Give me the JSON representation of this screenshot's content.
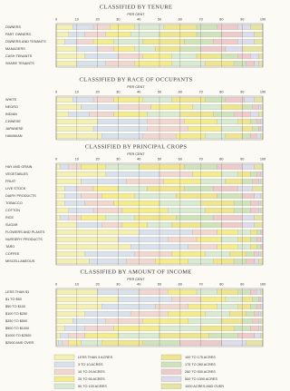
{
  "chart_data": [
    {
      "type": "stacked-bar",
      "title": "CLASSIFIED BY TENURE",
      "xlabel": "PER CENT",
      "xlim": [
        0,
        100
      ],
      "xticks": [
        0,
        10,
        20,
        30,
        40,
        50,
        60,
        70,
        80,
        90,
        100
      ],
      "grid": true,
      "categories": [
        "OWNERS",
        "PART OWNERS",
        "OWNERS AND TENANTS",
        "MANAGERS",
        "CASH TENANTS",
        "SHARE TENANTS"
      ],
      "series": [
        {
          "color": "#f4f0b4",
          "values": [
            8,
            6,
            4,
            10,
            14,
            10
          ]
        },
        {
          "color": "#d9e1ec",
          "values": [
            10,
            8,
            6,
            10,
            16,
            14
          ]
        },
        {
          "color": "#f2d7d0",
          "values": [
            8,
            10,
            8,
            8,
            12,
            14
          ]
        },
        {
          "color": "#f4ec8c",
          "values": [
            12,
            12,
            10,
            10,
            14,
            18
          ]
        },
        {
          "color": "#d9ead2",
          "values": [
            14,
            14,
            14,
            10,
            12,
            16
          ]
        },
        {
          "color": "#efe58e",
          "values": [
            16,
            18,
            20,
            12,
            12,
            14
          ]
        },
        {
          "color": "#cfe3ba",
          "values": [
            10,
            12,
            14,
            10,
            8,
            6
          ]
        },
        {
          "color": "#efcaca",
          "values": [
            10,
            10,
            12,
            12,
            6,
            4
          ]
        },
        {
          "color": "#dcdcec",
          "values": [
            6,
            6,
            8,
            8,
            4,
            2
          ]
        },
        {
          "color": "#e6e4a2",
          "values": [
            6,
            4,
            4,
            10,
            2,
            2
          ]
        }
      ]
    },
    {
      "type": "stacked-bar",
      "title": "CLASSIFIED BY RACE OF OCCUPANTS",
      "xlabel": "PER CENT",
      "xlim": [
        0,
        100
      ],
      "xticks": [
        0,
        10,
        20,
        30,
        40,
        50,
        60,
        70,
        80,
        90,
        100
      ],
      "grid": true,
      "categories": [
        "WHITE",
        "NEGRO",
        "INDIAN",
        "CHINESE",
        "JAPANESE",
        "HAWAIIAN"
      ],
      "series": [
        {
          "color": "#f4f0b4",
          "values": [
            8,
            12,
            6,
            20,
            18,
            22
          ]
        },
        {
          "color": "#d9e1ec",
          "values": [
            10,
            18,
            10,
            24,
            26,
            20
          ]
        },
        {
          "color": "#f2d7d0",
          "values": [
            10,
            16,
            12,
            18,
            20,
            16
          ]
        },
        {
          "color": "#f4ec8c",
          "values": [
            14,
            20,
            16,
            16,
            16,
            14
          ]
        },
        {
          "color": "#d9ead2",
          "values": [
            14,
            14,
            16,
            10,
            10,
            10
          ]
        },
        {
          "color": "#efe58e",
          "values": [
            16,
            10,
            16,
            6,
            5,
            8
          ]
        },
        {
          "color": "#cfe3ba",
          "values": [
            10,
            5,
            10,
            3,
            3,
            4
          ]
        },
        {
          "color": "#efcaca",
          "values": [
            9,
            3,
            8,
            2,
            1,
            3
          ]
        },
        {
          "color": "#dcdcec",
          "values": [
            5,
            1,
            4,
            1,
            1,
            2
          ]
        },
        {
          "color": "#e6e4a2",
          "values": [
            4,
            1,
            2,
            0,
            0,
            1
          ]
        }
      ]
    },
    {
      "type": "stacked-bar",
      "title": "CLASSIFIED BY PRINCIPAL CROPS",
      "xlabel": "PER CENT",
      "xlim": [
        0,
        100
      ],
      "xticks": [
        0,
        10,
        20,
        30,
        40,
        50,
        60,
        70,
        80,
        90,
        100
      ],
      "grid": true,
      "categories": [
        "HAY AND GRAIN",
        "VEGETABLES",
        "FRUIT",
        "LIVE STOCK",
        "DAIRY PRODUCTS",
        "TOBACCO",
        "COTTON",
        "RICE",
        "SUGAR",
        "FLOWERS AND PLANTS",
        "NURSERY PRODUCTS",
        "TARO",
        "COFFEE",
        "MISCELLANEOUS"
      ],
      "series": [
        {
          "color": "#f4f0b4",
          "values": [
            2,
            24,
            12,
            4,
            4,
            4,
            6,
            2,
            10,
            40,
            30,
            36,
            14,
            16
          ]
        },
        {
          "color": "#d9e1ec",
          "values": [
            4,
            26,
            22,
            6,
            8,
            10,
            12,
            4,
            12,
            26,
            24,
            28,
            24,
            18
          ]
        },
        {
          "color": "#f2d7d0",
          "values": [
            6,
            16,
            18,
            8,
            10,
            14,
            14,
            6,
            10,
            12,
            14,
            14,
            18,
            14
          ]
        },
        {
          "color": "#f4ec8c",
          "values": [
            12,
            14,
            18,
            12,
            16,
            22,
            22,
            12,
            12,
            10,
            12,
            10,
            16,
            16
          ]
        },
        {
          "color": "#d9ead2",
          "values": [
            16,
            8,
            12,
            14,
            20,
            20,
            18,
            14,
            12,
            6,
            8,
            6,
            12,
            12
          ]
        },
        {
          "color": "#efe58e",
          "values": [
            22,
            6,
            8,
            18,
            20,
            16,
            14,
            20,
            14,
            3,
            6,
            3,
            8,
            10
          ]
        },
        {
          "color": "#cfe3ba",
          "values": [
            16,
            3,
            5,
            14,
            12,
            8,
            8,
            18,
            10,
            2,
            3,
            2,
            4,
            6
          ]
        },
        {
          "color": "#efcaca",
          "values": [
            12,
            2,
            3,
            12,
            6,
            4,
            4,
            14,
            10,
            1,
            2,
            1,
            2,
            4
          ]
        },
        {
          "color": "#dcdcec",
          "values": [
            6,
            1,
            1,
            7,
            3,
            1,
            1,
            6,
            6,
            0,
            1,
            0,
            1,
            2
          ]
        },
        {
          "color": "#e6e4a2",
          "values": [
            4,
            0,
            1,
            5,
            1,
            1,
            1,
            4,
            4,
            0,
            0,
            0,
            1,
            2
          ]
        }
      ]
    },
    {
      "type": "stacked-bar",
      "title": "CLASSIFIED BY AMOUNT OF INCOME",
      "xlabel": "PER CENT",
      "xlim": [
        0,
        100
      ],
      "xticks": [
        0,
        10,
        20,
        30,
        40,
        50,
        60,
        70,
        80,
        90,
        100
      ],
      "grid": true,
      "categories": [
        "LESS THAN $1",
        "$1 TO $50",
        "$50 TO $100",
        "$100 TO $250",
        "$250 TO $500",
        "$500 TO $1000",
        "$1000 TO $2500",
        "$2500 AND OVER"
      ],
      "series": [
        {
          "name": "LESS THAN 3 ACRES",
          "color": "#f4f0b4",
          "values": [
            20,
            30,
            22,
            14,
            8,
            4,
            2,
            1
          ]
        },
        {
          "name": "3 TO 10 ACRES",
          "color": "#d9e1ec",
          "values": [
            20,
            26,
            26,
            22,
            16,
            10,
            4,
            2
          ]
        },
        {
          "name": "10 TO 20 ACRES",
          "color": "#f2d7d0",
          "values": [
            14,
            14,
            16,
            18,
            18,
            14,
            8,
            3
          ]
        },
        {
          "name": "20 TO 50 ACRES",
          "color": "#f4ec8c",
          "values": [
            14,
            12,
            14,
            18,
            22,
            22,
            16,
            6
          ]
        },
        {
          "name": "50 TO 100 ACRES",
          "color": "#d9ead2",
          "values": [
            10,
            8,
            10,
            12,
            16,
            20,
            20,
            10
          ]
        },
        {
          "name": "100 TO 175 ACRES",
          "color": "#efe58e",
          "values": [
            10,
            5,
            6,
            8,
            10,
            16,
            24,
            20
          ]
        },
        {
          "name": "175 TO 260 ACRES",
          "color": "#cfe3ba",
          "values": [
            6,
            3,
            3,
            4,
            5,
            8,
            14,
            18
          ]
        },
        {
          "name": "260 TO 500 ACRES",
          "color": "#efcaca",
          "values": [
            3,
            1,
            2,
            2,
            3,
            4,
            8,
            20
          ]
        },
        {
          "name": "500 TO 1000 ACRES",
          "color": "#dcdcec",
          "values": [
            2,
            1,
            1,
            1,
            1,
            1,
            3,
            12
          ]
        },
        {
          "name": "1000 ACRES AND OVER",
          "color": "#e6e4a2",
          "values": [
            1,
            0,
            0,
            1,
            1,
            1,
            1,
            8
          ]
        }
      ]
    }
  ]
}
